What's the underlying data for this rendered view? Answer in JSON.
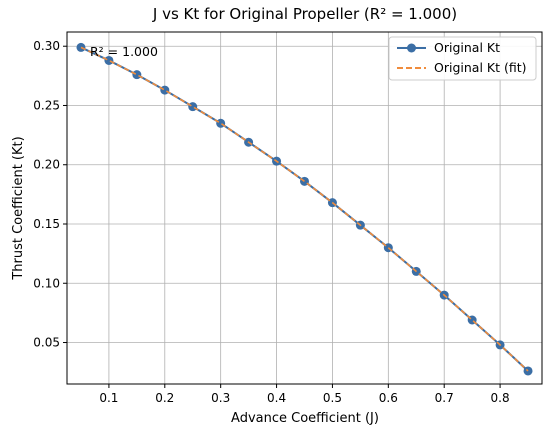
{
  "chart_data": {
    "type": "line",
    "title": "J vs Kt for Original Propeller (R² = 1.000)",
    "xlabel": "Advance Coefficient (J)",
    "ylabel": "Thrust Coefficient (Kt)",
    "annotation": "R² = 1.000",
    "xlim": [
      0.025,
      0.875
    ],
    "ylim": [
      0.015,
      0.312
    ],
    "xticks": [
      0.1,
      0.2,
      0.3,
      0.4,
      0.5,
      0.6,
      0.7,
      0.8
    ],
    "xtick_labels": [
      "0.1",
      "0.2",
      "0.3",
      "0.4",
      "0.5",
      "0.6",
      "0.7",
      "0.8"
    ],
    "yticks": [
      0.05,
      0.1,
      0.15,
      0.2,
      0.25,
      0.3
    ],
    "ytick_labels": [
      "0.05",
      "0.10",
      "0.15",
      "0.20",
      "0.25",
      "0.30"
    ],
    "grid": true,
    "legend_position": "top-right",
    "x": [
      0.05,
      0.1,
      0.15,
      0.2,
      0.25,
      0.3,
      0.35,
      0.4,
      0.45,
      0.5,
      0.55,
      0.6,
      0.65,
      0.7,
      0.75,
      0.8,
      0.85
    ],
    "series": [
      {
        "name": "Original Kt",
        "style": "solid-line-with-markers",
        "color": "#3b6ea5",
        "values": [
          0.299,
          0.288,
          0.276,
          0.263,
          0.249,
          0.235,
          0.219,
          0.203,
          0.186,
          0.168,
          0.149,
          0.13,
          0.11,
          0.09,
          0.069,
          0.048,
          0.026
        ]
      },
      {
        "name": "Original Kt (fit)",
        "style": "dashed-line",
        "color": "#f08c3c",
        "values": [
          0.299,
          0.288,
          0.276,
          0.263,
          0.249,
          0.235,
          0.219,
          0.203,
          0.186,
          0.168,
          0.149,
          0.13,
          0.11,
          0.09,
          0.069,
          0.048,
          0.026
        ]
      }
    ]
  }
}
